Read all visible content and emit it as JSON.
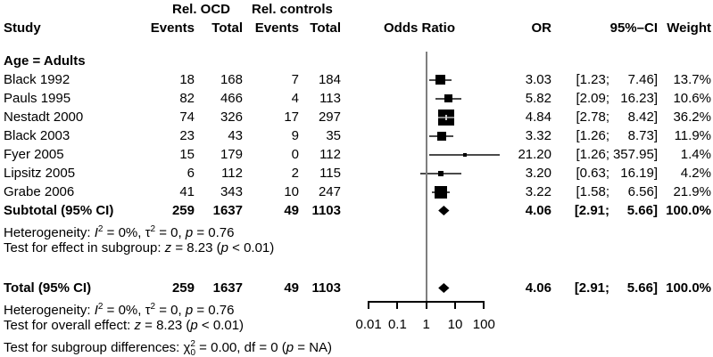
{
  "header": {
    "group1": "Rel. OCD",
    "group2": "Rel. controls",
    "study": "Study",
    "events1": "Events",
    "total1": "Total",
    "events2": "Events",
    "total2": "Total",
    "odds_ratio": "Odds Ratio",
    "or": "OR",
    "ci": "95%–CI",
    "weight": "Weight"
  },
  "chart_data": {
    "type": "forest",
    "scale": "log10",
    "ref_line": 1,
    "x_axis": {
      "tick_values": [
        0.01,
        0.1,
        1,
        10,
        100
      ],
      "tick_labels": [
        "0.01",
        "0.1",
        "1",
        "10",
        "100"
      ]
    },
    "group_label": "Age = Adults",
    "studies": [
      {
        "study": "Black 1992",
        "events_ocd": 18,
        "total_ocd": 168,
        "events_ctrl": 7,
        "total_ctrl": 184,
        "or": 3.03,
        "ci_low": 1.23,
        "ci_high": 7.46,
        "or_label": "3.03",
        "ci_low_label": "[1.23;",
        "ci_high_label": "7.46]",
        "weight_label": "13.7%",
        "weight_value": 13.7
      },
      {
        "study": "Pauls 1995",
        "events_ocd": 82,
        "total_ocd": 466,
        "events_ctrl": 4,
        "total_ctrl": 113,
        "or": 5.82,
        "ci_low": 2.09,
        "ci_high": 16.23,
        "or_label": "5.82",
        "ci_low_label": "[2.09;",
        "ci_high_label": "16.23]",
        "weight_label": "10.6%",
        "weight_value": 10.6
      },
      {
        "study": "Nestadt 2000",
        "events_ocd": 74,
        "total_ocd": 326,
        "events_ctrl": 17,
        "total_ctrl": 297,
        "or": 4.84,
        "ci_low": 2.78,
        "ci_high": 8.42,
        "or_label": "4.84",
        "ci_low_label": "[2.78;",
        "ci_high_label": "8.42]",
        "weight_label": "36.2%",
        "weight_value": 36.2
      },
      {
        "study": "Black 2003",
        "events_ocd": 23,
        "total_ocd": 43,
        "events_ctrl": 9,
        "total_ctrl": 35,
        "or": 3.32,
        "ci_low": 1.26,
        "ci_high": 8.73,
        "or_label": "3.32",
        "ci_low_label": "[1.26;",
        "ci_high_label": "8.73]",
        "weight_label": "11.9%",
        "weight_value": 11.9
      },
      {
        "study": "Fyer 2005",
        "events_ocd": 15,
        "total_ocd": 179,
        "events_ctrl": 0,
        "total_ctrl": 112,
        "or": 21.2,
        "ci_low": 1.26,
        "ci_high": 357.95,
        "or_label": "21.20",
        "ci_low_label": "[1.26;",
        "ci_high_label": "357.95]",
        "weight_label": "1.4%",
        "weight_value": 1.4
      },
      {
        "study": "Lipsitz 2005",
        "events_ocd": 6,
        "total_ocd": 112,
        "events_ctrl": 2,
        "total_ctrl": 115,
        "or": 3.2,
        "ci_low": 0.63,
        "ci_high": 16.19,
        "or_label": "3.20",
        "ci_low_label": "[0.63;",
        "ci_high_label": "16.19]",
        "weight_label": "4.2%",
        "weight_value": 4.2
      },
      {
        "study": "Grabe 2006",
        "events_ocd": 41,
        "total_ocd": 343,
        "events_ctrl": 10,
        "total_ctrl": 247,
        "or": 3.22,
        "ci_low": 1.58,
        "ci_high": 6.56,
        "or_label": "3.22",
        "ci_low_label": "[1.58;",
        "ci_high_label": "6.56]",
        "weight_label": "21.9%",
        "weight_value": 21.9
      }
    ],
    "subtotal": {
      "label": "Subtotal (95% CI)",
      "events_ocd": 259,
      "total_ocd": 1637,
      "events_ctrl": 49,
      "total_ctrl": 1103,
      "or": 4.06,
      "ci_low": 2.91,
      "ci_high": 5.66,
      "or_label": "4.06",
      "ci_low_label": "[2.91;",
      "ci_high_label": "5.66]",
      "weight_label": "100.0%"
    },
    "total": {
      "label": "Total (95% CI)",
      "events_ocd": 259,
      "total_ocd": 1637,
      "events_ctrl": 49,
      "total_ctrl": 1103,
      "or": 4.06,
      "ci_low": 2.91,
      "ci_high": 5.66,
      "or_label": "4.06",
      "ci_low_label": "[2.91;",
      "ci_high_label": "5.66]",
      "weight_label": "100.0%"
    }
  },
  "notes": {
    "subgroup_heterogeneity": [
      {
        "t": "Heterogeneity: "
      },
      {
        "t": "I",
        "i": true
      },
      {
        "t": "2",
        "sup": true
      },
      {
        "t": " = 0%, "
      },
      {
        "t": "τ"
      },
      {
        "t": "2",
        "sup": true
      },
      {
        "t": " = 0, "
      },
      {
        "t": "p",
        "i": true
      },
      {
        "t": " = 0.76"
      }
    ],
    "subgroup_effect_test": [
      {
        "t": "Test for effect in subgroup: "
      },
      {
        "t": "z",
        "i": true
      },
      {
        "t": " = 8.23 ("
      },
      {
        "t": "p",
        "i": true
      },
      {
        "t": " < 0.01)"
      }
    ],
    "total_heterogeneity": [
      {
        "t": "Heterogeneity: "
      },
      {
        "t": "I",
        "i": true
      },
      {
        "t": "2",
        "sup": true
      },
      {
        "t": " = 0%, "
      },
      {
        "t": "τ"
      },
      {
        "t": "2",
        "sup": true
      },
      {
        "t": " = 0, "
      },
      {
        "t": "p",
        "i": true
      },
      {
        "t": " = 0.76"
      }
    ],
    "overall_effect_test": [
      {
        "t": "Test for overall effect: "
      },
      {
        "t": "z",
        "i": true
      },
      {
        "t": " = 8.23 ("
      },
      {
        "t": "p",
        "i": true
      },
      {
        "t": " < 0.01)"
      }
    ],
    "subgroup_difference_test": [
      {
        "t": "Test for subgroup differences: "
      },
      {
        "t": "χ"
      },
      {
        "t": "2",
        "sup": true
      },
      {
        "t": "0",
        "sub": true,
        "stack": true
      },
      {
        "t": " = 0.00, df = 0 ("
      },
      {
        "t": "p",
        "i": true
      },
      {
        "t": " = NA)"
      }
    ]
  },
  "colors": {
    "marker": "#000000",
    "ci_line": "#4a4a4a",
    "ref_line": "#7f7f7f",
    "text": "#000000",
    "background": "#ffffff"
  }
}
